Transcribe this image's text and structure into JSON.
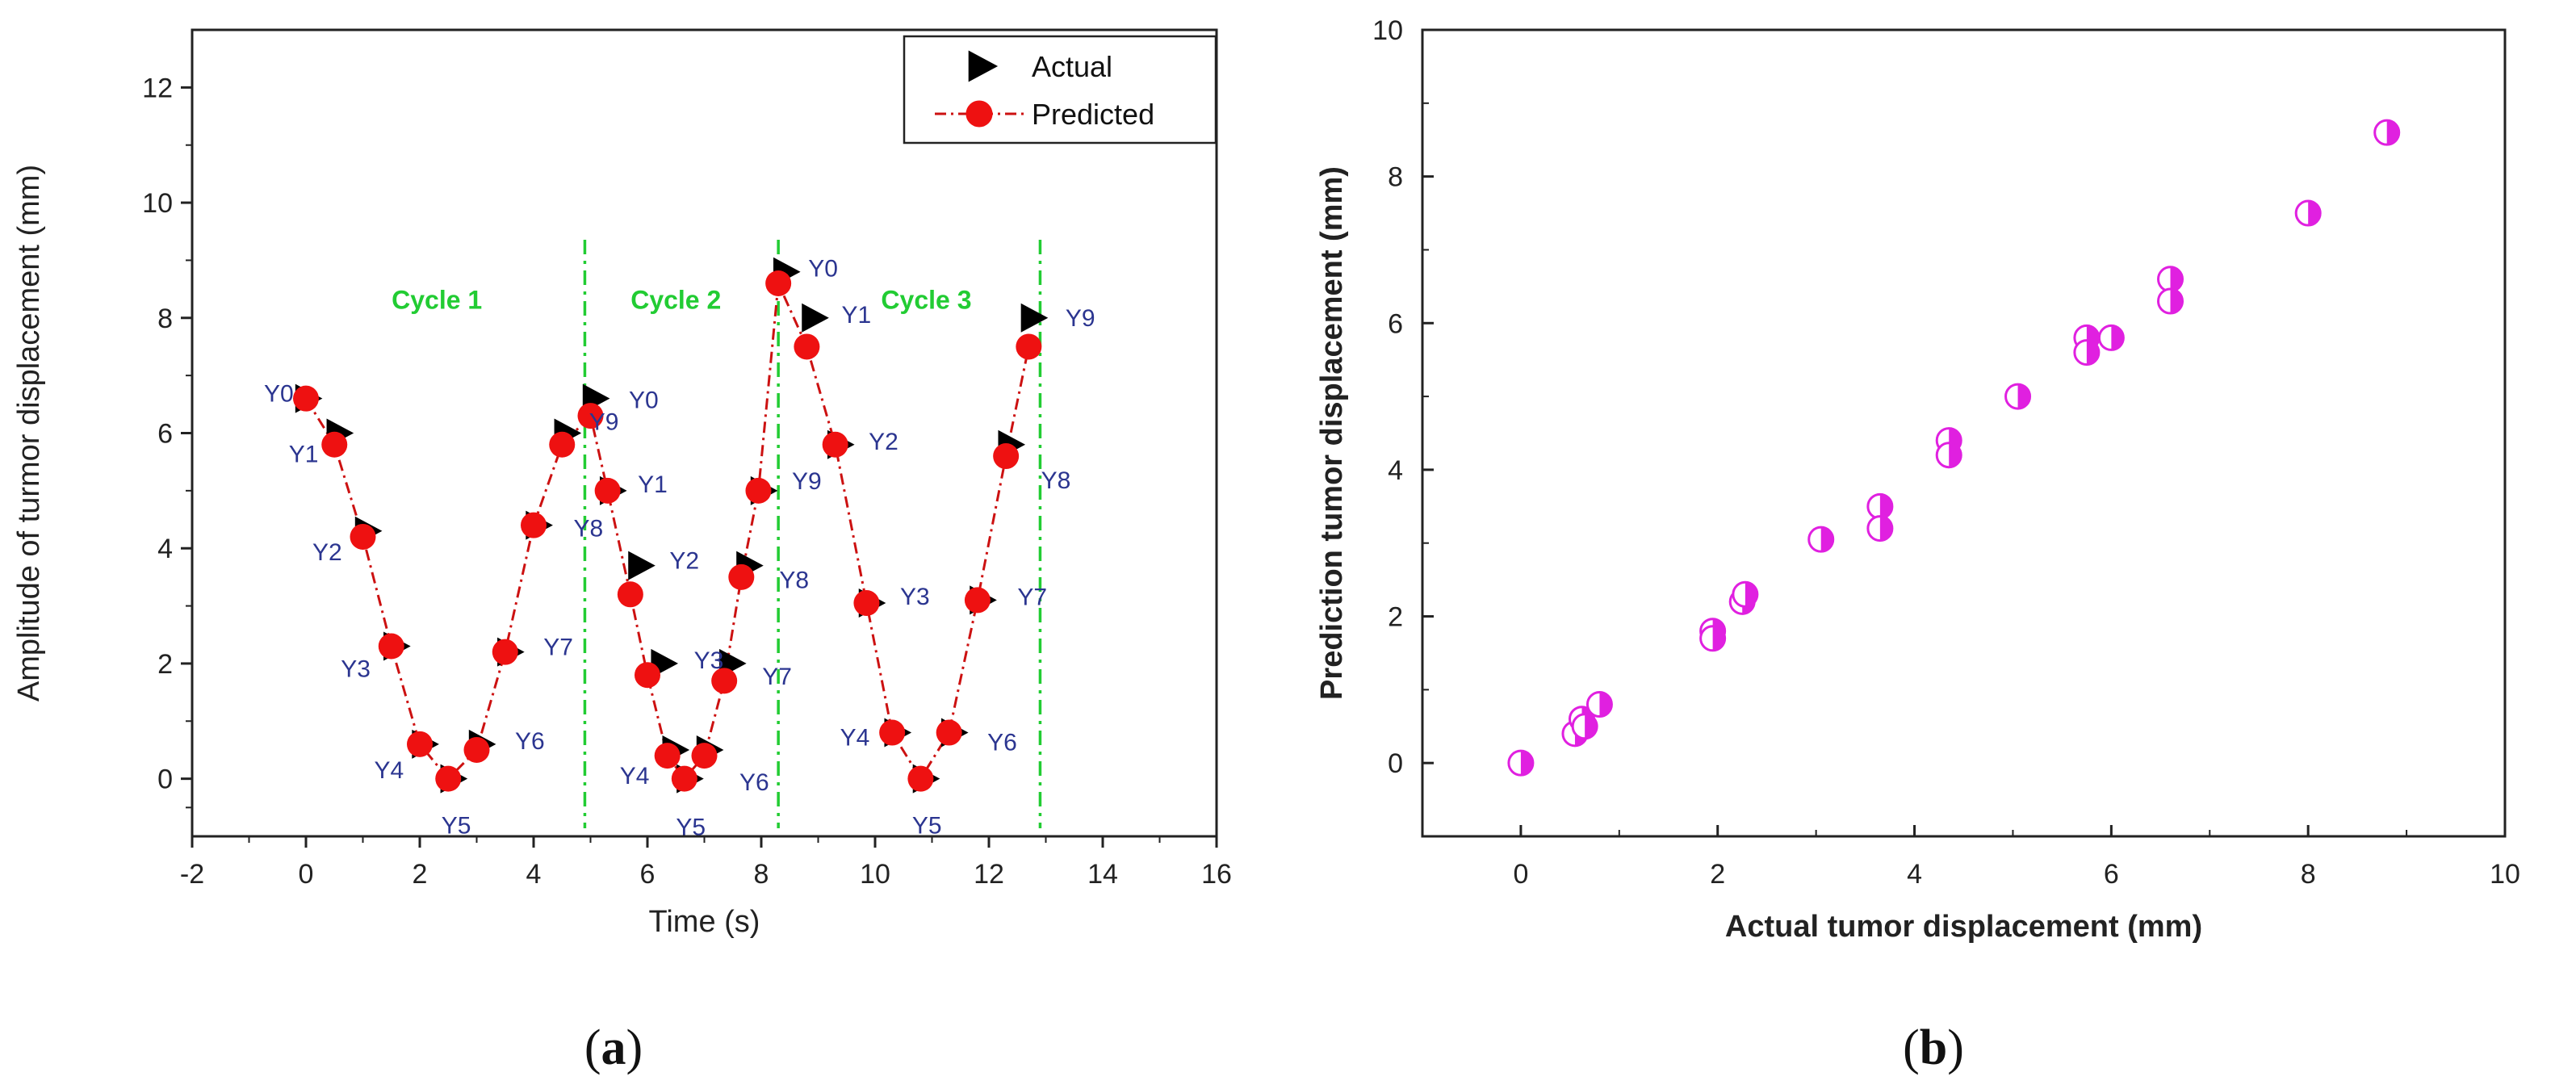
{
  "panels": {
    "a": {
      "caption_letter": "a"
    },
    "b": {
      "caption_letter": "b"
    }
  },
  "colors": {
    "actual": "#000000",
    "predicted": "#ee1111",
    "predicted_line": "#cc1111",
    "cycle_line": "#22cc33",
    "scatter": "#e020e0",
    "label_text": "#2b3590"
  },
  "chart_data": [
    {
      "id": "a",
      "type": "line",
      "xlabel": "Time (s)",
      "ylabel": "Amplitude of turmor displacement (mm)",
      "xlim": [
        -2,
        16
      ],
      "ylim": [
        -1,
        13
      ],
      "xticks": [
        -2,
        0,
        2,
        4,
        6,
        8,
        10,
        12,
        14,
        16
      ],
      "yticks": [
        0,
        2,
        4,
        6,
        8,
        10,
        12
      ],
      "legend": {
        "position": "top-right",
        "entries": [
          "Actual",
          "Predicted"
        ]
      },
      "cycle_boundaries": [
        4.9,
        8.3,
        12.9
      ],
      "cycles": [
        {
          "label": "Cycle 1",
          "x": 2.3,
          "y": 8.3
        },
        {
          "label": "Cycle 2",
          "x": 6.5,
          "y": 8.3
        },
        {
          "label": "Cycle 3",
          "x": 10.9,
          "y": 8.3
        }
      ],
      "series": [
        {
          "name": "Actual",
          "marker": "triangle-right",
          "points": [
            {
              "x": 0,
              "y": 6.6,
              "label": "Y0"
            },
            {
              "x": 0.55,
              "y": 6.0,
              "label": "Y1"
            },
            {
              "x": 1.05,
              "y": 4.3,
              "label": "Y2"
            },
            {
              "x": 1.55,
              "y": 2.3,
              "label": "Y3"
            },
            {
              "x": 2.05,
              "y": 0.6,
              "label": "Y4"
            },
            {
              "x": 2.55,
              "y": 0.0,
              "label": "Y5"
            },
            {
              "x": 3.05,
              "y": 0.6,
              "label": "Y6"
            },
            {
              "x": 3.55,
              "y": 2.2,
              "label": "Y7"
            },
            {
              "x": 4.05,
              "y": 4.4,
              "label": "Y8"
            },
            {
              "x": 4.55,
              "y": 6.0,
              "label": "Y9"
            },
            {
              "x": 5.05,
              "y": 6.6,
              "label": "Y0"
            },
            {
              "x": 5.35,
              "y": 5.0,
              "label": "Y1"
            },
            {
              "x": 5.85,
              "y": 3.7,
              "label": "Y2"
            },
            {
              "x": 6.25,
              "y": 2.0,
              "label": "Y3"
            },
            {
              "x": 6.45,
              "y": 0.5,
              "label": "Y4"
            },
            {
              "x": 6.7,
              "y": 0.0,
              "label": "Y5"
            },
            {
              "x": 7.05,
              "y": 0.5,
              "label": "Y6"
            },
            {
              "x": 7.45,
              "y": 2.0,
              "label": "Y7"
            },
            {
              "x": 7.75,
              "y": 3.7,
              "label": "Y8"
            },
            {
              "x": 8.0,
              "y": 5.0,
              "label": "Y9"
            },
            {
              "x": 8.4,
              "y": 8.8,
              "label": "Y0"
            },
            {
              "x": 8.9,
              "y": 8.0,
              "label": "Y1"
            },
            {
              "x": 9.35,
              "y": 5.8,
              "label": "Y2"
            },
            {
              "x": 9.9,
              "y": 3.05,
              "label": "Y3"
            },
            {
              "x": 10.35,
              "y": 0.8,
              "label": "Y4"
            },
            {
              "x": 10.85,
              "y": 0.0,
              "label": "Y5"
            },
            {
              "x": 11.35,
              "y": 0.8,
              "label": "Y6"
            },
            {
              "x": 11.85,
              "y": 3.1,
              "label": "Y7"
            },
            {
              "x": 12.35,
              "y": 5.8,
              "label": "Y8"
            },
            {
              "x": 12.75,
              "y": 8.0,
              "label": "Y9"
            }
          ]
        },
        {
          "name": "Predicted",
          "marker": "circle",
          "points": [
            {
              "x": 0,
              "y": 6.6
            },
            {
              "x": 0.5,
              "y": 5.8
            },
            {
              "x": 1.0,
              "y": 4.2
            },
            {
              "x": 1.5,
              "y": 2.3
            },
            {
              "x": 2.0,
              "y": 0.6
            },
            {
              "x": 2.5,
              "y": 0.0
            },
            {
              "x": 3.0,
              "y": 0.5
            },
            {
              "x": 3.5,
              "y": 2.2
            },
            {
              "x": 4.0,
              "y": 4.4
            },
            {
              "x": 4.5,
              "y": 5.8
            },
            {
              "x": 5.0,
              "y": 6.3
            },
            {
              "x": 5.3,
              "y": 5.0
            },
            {
              "x": 5.7,
              "y": 3.2
            },
            {
              "x": 6.0,
              "y": 1.8
            },
            {
              "x": 6.35,
              "y": 0.4
            },
            {
              "x": 6.65,
              "y": 0.0
            },
            {
              "x": 7.0,
              "y": 0.4
            },
            {
              "x": 7.35,
              "y": 1.7
            },
            {
              "x": 7.65,
              "y": 3.5
            },
            {
              "x": 7.95,
              "y": 5.0
            },
            {
              "x": 8.3,
              "y": 8.6
            },
            {
              "x": 8.8,
              "y": 7.5
            },
            {
              "x": 9.3,
              "y": 5.8
            },
            {
              "x": 9.85,
              "y": 3.05
            },
            {
              "x": 10.3,
              "y": 0.8
            },
            {
              "x": 10.8,
              "y": 0.0
            },
            {
              "x": 11.3,
              "y": 0.8
            },
            {
              "x": 11.8,
              "y": 3.1
            },
            {
              "x": 12.3,
              "y": 5.6
            },
            {
              "x": 12.7,
              "y": 7.5
            }
          ]
        }
      ]
    },
    {
      "id": "b",
      "type": "scatter",
      "xlabel": "Actual tumor displacement (mm)",
      "ylabel": "Prediction tumor displacement (mm)",
      "xlim": [
        -1,
        10
      ],
      "ylim": [
        -1,
        10
      ],
      "xticks": [
        0,
        2,
        4,
        6,
        8,
        10
      ],
      "yticks": [
        0,
        2,
        4,
        6,
        8,
        10
      ],
      "series": [
        {
          "name": "Actual vs Predicted",
          "marker": "half-filled-circle",
          "points": [
            {
              "x": 0.0,
              "y": 0.0
            },
            {
              "x": 0.55,
              "y": 0.4
            },
            {
              "x": 0.62,
              "y": 0.6
            },
            {
              "x": 0.65,
              "y": 0.5
            },
            {
              "x": 0.8,
              "y": 0.8
            },
            {
              "x": 1.95,
              "y": 1.8
            },
            {
              "x": 1.95,
              "y": 1.7
            },
            {
              "x": 2.25,
              "y": 2.2
            },
            {
              "x": 2.28,
              "y": 2.3
            },
            {
              "x": 3.05,
              "y": 3.05
            },
            {
              "x": 3.65,
              "y": 3.5
            },
            {
              "x": 3.65,
              "y": 3.2
            },
            {
              "x": 4.35,
              "y": 4.4
            },
            {
              "x": 4.35,
              "y": 4.2
            },
            {
              "x": 5.05,
              "y": 5.0
            },
            {
              "x": 5.75,
              "y": 5.8
            },
            {
              "x": 5.75,
              "y": 5.6
            },
            {
              "x": 6.0,
              "y": 5.8
            },
            {
              "x": 6.6,
              "y": 6.6
            },
            {
              "x": 6.6,
              "y": 6.3
            },
            {
              "x": 8.0,
              "y": 7.5
            },
            {
              "x": 8.8,
              "y": 8.6
            }
          ]
        }
      ]
    }
  ]
}
